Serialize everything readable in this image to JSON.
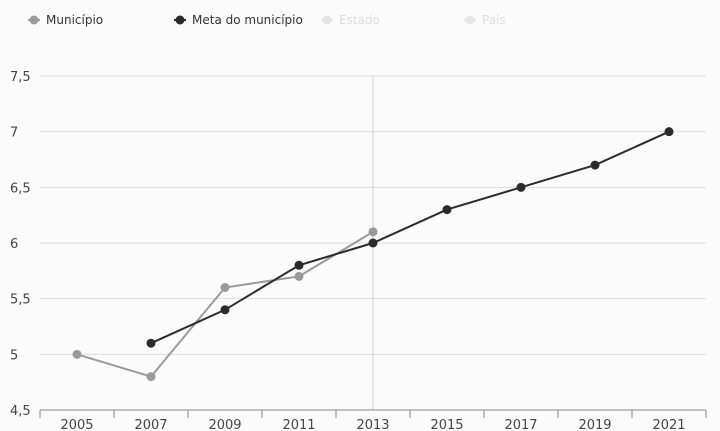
{
  "colors": {
    "municipio": "#9a9a9a",
    "meta": "#2b2b2b",
    "estado": "#c9c9c9",
    "pais": "#cfcfcf",
    "grid": "#dddddd",
    "axis": "#888888",
    "hover_line": "#d0d0d0"
  },
  "legend": [
    {
      "name": "Município",
      "color_key": "municipio",
      "icon": "circle-line-icon",
      "faded": false
    },
    {
      "name": "Meta do município",
      "color_key": "meta",
      "icon": "circle-line-icon",
      "faded": false
    },
    {
      "name": "Estado",
      "color_key": "estado",
      "icon": "circle-line-icon",
      "faded": true
    },
    {
      "name": "País",
      "color_key": "pais",
      "icon": "circle-line-icon",
      "faded": true
    }
  ],
  "chart_data": {
    "type": "line",
    "x": [
      "2005",
      "2007",
      "2009",
      "2011",
      "2013",
      "2015",
      "2017",
      "2019",
      "2021"
    ],
    "ylim": [
      4.5,
      7.5
    ],
    "y_ticks": [
      "4,5",
      "5",
      "5,5",
      "6",
      "6,5",
      "7",
      "7,5"
    ],
    "grid": true,
    "legend_position": "top-left",
    "highlight_x": "2013",
    "series": [
      {
        "name": "Município",
        "color_key": "municipio",
        "values": [
          5.0,
          4.8,
          5.6,
          5.7,
          6.1,
          null,
          null,
          null,
          null
        ]
      },
      {
        "name": "Meta do município",
        "color_key": "meta",
        "values": [
          null,
          5.1,
          5.4,
          5.8,
          6.0,
          6.3,
          6.5,
          6.7,
          7.0
        ]
      }
    ]
  }
}
